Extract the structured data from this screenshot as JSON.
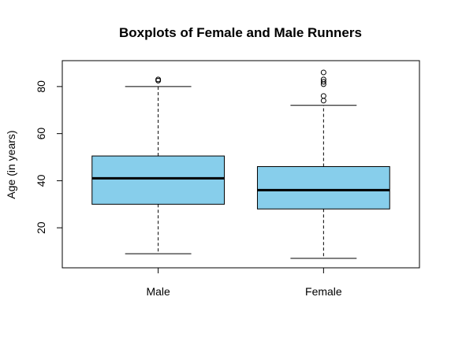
{
  "chart_data": {
    "type": "boxplot",
    "title": "Boxplots of Female and Male Runners",
    "xlabel": "",
    "ylabel": "Age (in years)",
    "ylim": [
      3,
      91
    ],
    "yticks": [
      20,
      40,
      60,
      80
    ],
    "categories": [
      "Male",
      "Female"
    ],
    "box_fill": "#87CEEB",
    "boxes": [
      {
        "name": "Male",
        "whisker_low": 9,
        "q1": 30,
        "median": 41,
        "q3": 50.5,
        "whisker_high": 80,
        "outliers": [
          82.5,
          83
        ]
      },
      {
        "name": "Female",
        "whisker_low": 7,
        "q1": 28,
        "median": 36,
        "q3": 46,
        "whisker_high": 72,
        "outliers": [
          74,
          76,
          81,
          82,
          83,
          86
        ]
      }
    ]
  }
}
